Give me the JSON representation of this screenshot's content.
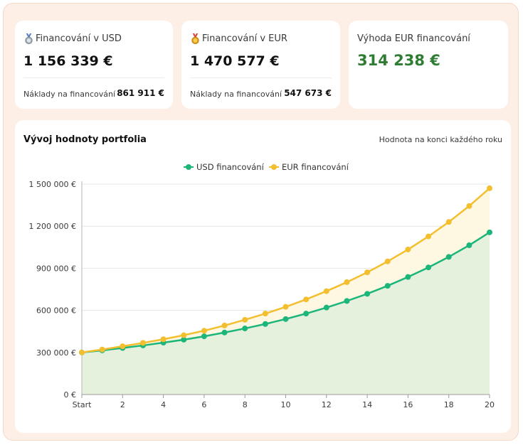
{
  "cards": {
    "usd": {
      "medal": "silver-medal-icon",
      "label": "Financování v USD",
      "value": "1 156 339 €",
      "cost_label": "Náklady na financování",
      "cost_value": "861 911 €"
    },
    "eur": {
      "medal": "gold-medal-icon",
      "label": "Financování v EUR",
      "value": "1 470 577 €",
      "cost_label": "Náklady na financování",
      "cost_value": "547 673 €"
    },
    "advantage": {
      "label": "Výhoda EUR financování",
      "value": "314 238 €"
    }
  },
  "colors": {
    "usd": "#1cb57a",
    "eur": "#f3bf2f",
    "advantage": "#2e7d32",
    "usd_fill": "#e5f1dc",
    "eur_fill": "#fef7e1"
  },
  "chart_data": {
    "type": "area",
    "title": "Vývoj hodnoty portfolia",
    "subtitle": "Hodnota na konci každého roku",
    "legend_position": "top-center",
    "grid": true,
    "x": [
      0,
      1,
      2,
      3,
      4,
      5,
      6,
      7,
      8,
      9,
      10,
      11,
      12,
      13,
      14,
      15,
      16,
      17,
      18,
      19,
      20
    ],
    "x_tick_labels": [
      "Start",
      "2",
      "4",
      "6",
      "8",
      "10",
      "12",
      "14",
      "16",
      "18",
      "20"
    ],
    "x_tick_values": [
      0,
      2,
      4,
      6,
      8,
      10,
      12,
      14,
      16,
      18,
      20
    ],
    "ylim": [
      0,
      1500000
    ],
    "y_ticks": [
      0,
      300000,
      600000,
      900000,
      1200000,
      1500000
    ],
    "y_tick_labels": [
      "0 €",
      "300 000 €",
      "600 000 €",
      "900 000 €",
      "1 200 000 €",
      "1 500 000 €"
    ],
    "series": [
      {
        "name": "USD financování",
        "values": [
          300000,
          315000,
          332000,
          350000,
          370000,
          391000,
          415000,
          442000,
          471000,
          503000,
          538000,
          577000,
          620000,
          667000,
          718000,
          775000,
          838000,
          906000,
          981000,
          1064000,
          1156339
        ]
      },
      {
        "name": "EUR financování",
        "values": [
          300000,
          321000,
          344000,
          368000,
          394000,
          423000,
          455000,
          492000,
          533000,
          577000,
          625000,
          678000,
          737000,
          801000,
          871000,
          949000,
          1034000,
          1127000,
          1230000,
          1344000,
          1470577
        ]
      }
    ]
  }
}
